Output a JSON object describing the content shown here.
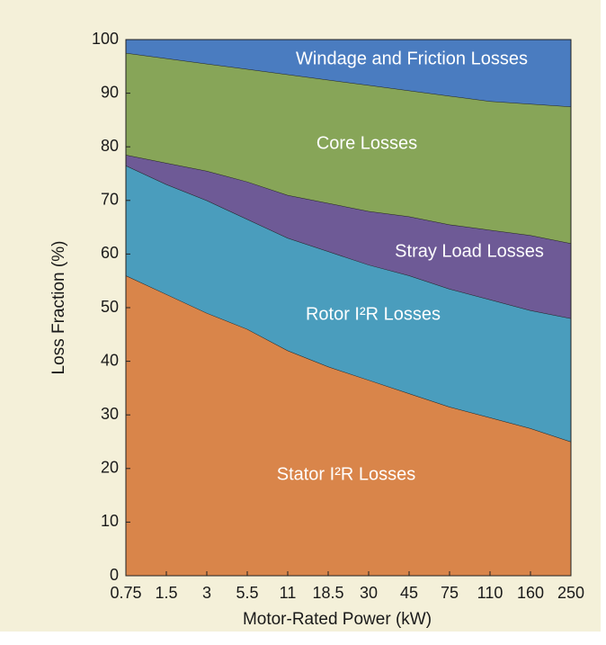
{
  "chart_data": {
    "type": "stacked-area",
    "x_label": "Motor-Rated Power (kW)",
    "y_label": "Loss Fraction (%)",
    "categories": [
      "0.75",
      "1.5",
      "3",
      "5.5",
      "11",
      "18.5",
      "30",
      "45",
      "75",
      "110",
      "160",
      "250"
    ],
    "ylim": [
      0,
      100
    ],
    "yticks": [
      0,
      10,
      20,
      30,
      40,
      50,
      60,
      70,
      80,
      90,
      100
    ],
    "series": [
      {
        "name": "Stator I²R Losses",
        "color": "#d9854a",
        "values": [
          56,
          52.5,
          49,
          46,
          42,
          39,
          36.5,
          34,
          31.5,
          29.5,
          27.5,
          25
        ]
      },
      {
        "name": "Rotor I²R Losses",
        "color": "#4a9dbd",
        "values": [
          20.5,
          20.5,
          21,
          20.5,
          21,
          21.5,
          21.5,
          22,
          22,
          22,
          22,
          23
        ]
      },
      {
        "name": "Stray Load Losses",
        "color": "#6e5a96",
        "values": [
          2,
          4,
          5.5,
          7,
          8,
          9,
          10,
          11,
          12,
          13,
          14,
          14
        ]
      },
      {
        "name": "Core Losses",
        "color": "#87a558",
        "values": [
          19,
          19.5,
          20,
          21,
          22.5,
          23,
          23.5,
          23.5,
          24,
          24,
          24.5,
          25.5
        ]
      },
      {
        "name": "Windage and Friction Losses",
        "color": "#4a7cc0",
        "values": [
          2.5,
          3.5,
          4.5,
          5.5,
          6.5,
          7.5,
          8.5,
          9.5,
          10.5,
          11.5,
          12,
          12.5
        ]
      }
    ]
  }
}
